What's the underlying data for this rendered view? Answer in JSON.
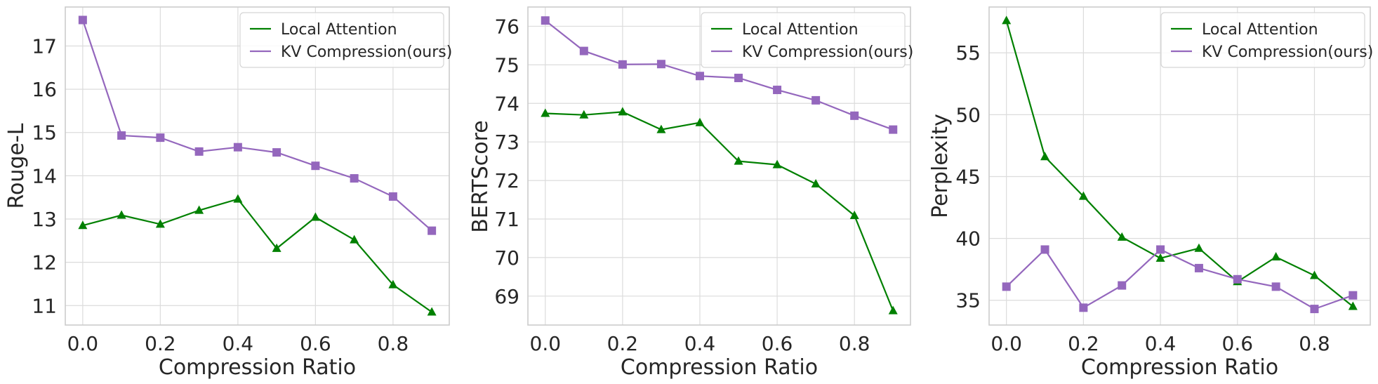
{
  "colors": {
    "local": "#008000",
    "kv": "#9467bd"
  },
  "chart_data": [
    {
      "type": "line",
      "xlabel": "Compression Ratio",
      "ylabel": "Rouge-L",
      "xlim": [
        -0.045,
        0.945
      ],
      "ylim": [
        10.55,
        17.9
      ],
      "xticks": [
        0.0,
        0.2,
        0.4,
        0.6,
        0.8
      ],
      "xtick_labels": [
        "0.0",
        "0.2",
        "0.4",
        "0.6",
        "0.8"
      ],
      "yticks": [
        11,
        12,
        13,
        14,
        15,
        16,
        17
      ],
      "ytick_labels": [
        "11",
        "12",
        "13",
        "14",
        "15",
        "16",
        "17"
      ],
      "legend_position": "top-right",
      "x": [
        0.0,
        0.1,
        0.2,
        0.3,
        0.4,
        0.5,
        0.6,
        0.7,
        0.8,
        0.9
      ],
      "series": [
        {
          "name": "Local Attention",
          "marker": "triangle",
          "color": "#008000",
          "values": [
            12.85,
            13.09,
            12.88,
            13.2,
            13.46,
            12.32,
            13.04,
            12.52,
            11.48,
            10.85
          ]
        },
        {
          "name": "KV Compression(ours)",
          "marker": "square",
          "color": "#9467bd",
          "values": [
            17.6,
            14.93,
            14.88,
            14.56,
            14.66,
            14.54,
            14.23,
            13.94,
            13.52,
            12.73
          ]
        }
      ]
    },
    {
      "type": "line",
      "xlabel": "Compression Ratio",
      "ylabel": "BERTScore",
      "xlim": [
        -0.045,
        0.945
      ],
      "ylim": [
        68.25,
        76.5
      ],
      "xticks": [
        0.0,
        0.2,
        0.4,
        0.6,
        0.8
      ],
      "xtick_labels": [
        "0.0",
        "0.2",
        "0.4",
        "0.6",
        "0.8"
      ],
      "yticks": [
        69,
        70,
        71,
        72,
        73,
        74,
        75,
        76
      ],
      "ytick_labels": [
        "69",
        "70",
        "71",
        "72",
        "73",
        "74",
        "75",
        "76"
      ],
      "legend_position": "top-right",
      "x": [
        0.0,
        0.1,
        0.2,
        0.3,
        0.4,
        0.5,
        0.6,
        0.7,
        0.8,
        0.9
      ],
      "series": [
        {
          "name": "Local Attention",
          "marker": "triangle",
          "color": "#008000",
          "values": [
            73.74,
            73.7,
            73.78,
            73.32,
            73.5,
            72.5,
            72.41,
            71.91,
            71.09,
            68.62
          ]
        },
        {
          "name": "KV Compression(ours)",
          "marker": "square",
          "color": "#9467bd",
          "values": [
            76.15,
            75.36,
            75.01,
            75.02,
            74.71,
            74.66,
            74.35,
            74.08,
            73.68,
            73.32
          ]
        }
      ]
    },
    {
      "type": "line",
      "xlabel": "Compression Ratio",
      "ylabel": "Perplexity",
      "xlim": [
        -0.045,
        0.945
      ],
      "ylim": [
        33.0,
        58.7
      ],
      "xticks": [
        0.0,
        0.2,
        0.4,
        0.6,
        0.8
      ],
      "xtick_labels": [
        "0.0",
        "0.2",
        "0.4",
        "0.6",
        "0.8"
      ],
      "yticks": [
        35,
        40,
        45,
        50,
        55
      ],
      "ytick_labels": [
        "35",
        "40",
        "45",
        "50",
        "55"
      ],
      "legend_position": "top-right",
      "x": [
        0.0,
        0.1,
        0.2,
        0.3,
        0.4,
        0.5,
        0.6,
        0.7,
        0.8,
        0.9
      ],
      "series": [
        {
          "name": "Local Attention",
          "marker": "triangle",
          "color": "#008000",
          "values": [
            57.6,
            46.6,
            43.4,
            40.1,
            38.4,
            39.2,
            36.5,
            38.5,
            37.0,
            34.5
          ]
        },
        {
          "name": "KV Compression(ours)",
          "marker": "square",
          "color": "#9467bd",
          "values": [
            36.1,
            39.1,
            34.4,
            36.2,
            39.1,
            37.6,
            36.7,
            36.1,
            34.3,
            35.4
          ]
        }
      ]
    }
  ]
}
